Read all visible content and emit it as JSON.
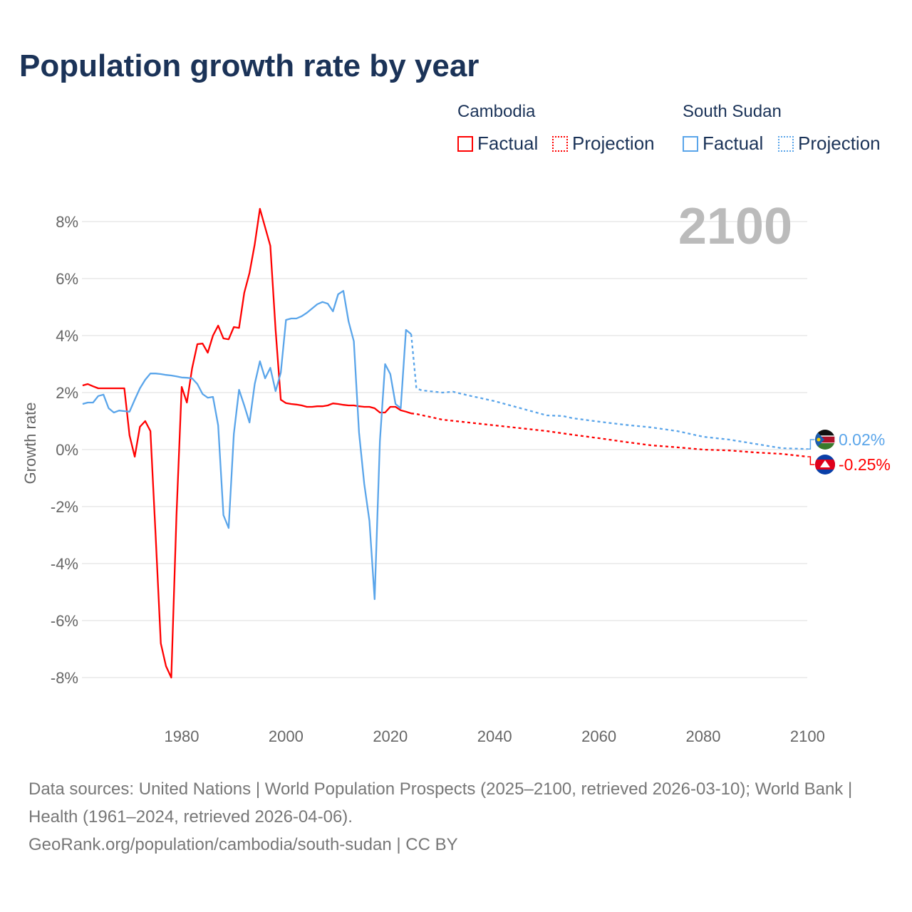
{
  "title": "Population growth rate by year",
  "legend": {
    "groups": [
      {
        "name": "Cambodia",
        "factual": "Factual",
        "projection": "Projection",
        "color": "#ff0000"
      },
      {
        "name": "South Sudan",
        "factual": "Factual",
        "projection": "Projection",
        "color": "#5aa5ea"
      }
    ]
  },
  "chart_data": {
    "type": "line",
    "title": "Population growth rate by year",
    "xlabel": "",
    "ylabel": "Growth rate",
    "xlim": [
      1961,
      2100
    ],
    "ylim": [
      -9.5,
      9
    ],
    "yticks": [
      8,
      6,
      4,
      2,
      0,
      -2,
      -4,
      -6,
      -8
    ],
    "ytick_labels": [
      "8%",
      "6%",
      "4%",
      "2%",
      "0%",
      "-2%",
      "-4%",
      "-6%",
      "-8%"
    ],
    "xticks": [
      1980,
      2000,
      2020,
      2040,
      2060,
      2080,
      2100
    ],
    "xtick_labels": [
      "1980",
      "2000",
      "2020",
      "2040",
      "2060",
      "2080",
      "2100"
    ],
    "grid": true,
    "year_label": "2100",
    "series": [
      {
        "name": "Cambodia Factual",
        "color": "#ff0000",
        "dashed": false,
        "x": [
          1961,
          1962,
          1963,
          1964,
          1965,
          1966,
          1967,
          1968,
          1969,
          1970,
          1971,
          1972,
          1973,
          1974,
          1975,
          1976,
          1977,
          1978,
          1979,
          1980,
          1981,
          1982,
          1983,
          1984,
          1985,
          1986,
          1987,
          1988,
          1989,
          1990,
          1991,
          1992,
          1993,
          1994,
          1995,
          1996,
          1997,
          1998,
          1999,
          2000,
          2001,
          2002,
          2003,
          2004,
          2005,
          2006,
          2007,
          2008,
          2009,
          2010,
          2011,
          2012,
          2013,
          2014,
          2015,
          2016,
          2017,
          2018,
          2019,
          2020,
          2021,
          2022,
          2023,
          2024
        ],
        "y": [
          2.25,
          2.3,
          2.22,
          2.15,
          2.15,
          2.15,
          2.15,
          2.15,
          2.15,
          0.5,
          -0.25,
          0.8,
          1.0,
          0.65,
          -3.0,
          -6.8,
          -7.6,
          -8.0,
          -2.3,
          2.2,
          1.65,
          2.85,
          3.7,
          3.72,
          3.4,
          4.0,
          4.35,
          3.9,
          3.87,
          4.3,
          4.27,
          5.5,
          6.2,
          7.2,
          8.45,
          7.8,
          7.15,
          4.2,
          1.75,
          1.63,
          1.6,
          1.58,
          1.55,
          1.5,
          1.5,
          1.52,
          1.52,
          1.55,
          1.62,
          1.6,
          1.57,
          1.55,
          1.55,
          1.52,
          1.5,
          1.5,
          1.45,
          1.3,
          1.3,
          1.5,
          1.5,
          1.38,
          1.33,
          1.27
        ]
      },
      {
        "name": "Cambodia Projection",
        "color": "#ff0000",
        "dashed": true,
        "x": [
          2024,
          2025,
          2030,
          2035,
          2040,
          2045,
          2050,
          2055,
          2060,
          2065,
          2070,
          2075,
          2080,
          2085,
          2090,
          2095,
          2100
        ],
        "y": [
          1.27,
          1.25,
          1.05,
          0.95,
          0.85,
          0.75,
          0.65,
          0.52,
          0.4,
          0.27,
          0.15,
          0.08,
          0.0,
          -0.03,
          -0.1,
          -0.15,
          -0.25
        ]
      },
      {
        "name": "South Sudan Factual",
        "color": "#5aa5ea",
        "dashed": false,
        "x": [
          1961,
          1962,
          1963,
          1964,
          1965,
          1966,
          1967,
          1968,
          1969,
          1970,
          1971,
          1972,
          1973,
          1974,
          1975,
          1976,
          1977,
          1978,
          1979,
          1980,
          1981,
          1982,
          1983,
          1984,
          1985,
          1986,
          1987,
          1988,
          1989,
          1990,
          1991,
          1992,
          1993,
          1994,
          1995,
          1996,
          1997,
          1998,
          1999,
          2000,
          2001,
          2002,
          2003,
          2004,
          2005,
          2006,
          2007,
          2008,
          2009,
          2010,
          2011,
          2012,
          2013,
          2014,
          2015,
          2016,
          2017,
          2018,
          2019,
          2020,
          2021,
          2022,
          2023,
          2024
        ],
        "y": [
          1.6,
          1.65,
          1.65,
          1.88,
          1.93,
          1.45,
          1.3,
          1.37,
          1.35,
          1.33,
          1.75,
          2.15,
          2.45,
          2.67,
          2.67,
          2.65,
          2.62,
          2.6,
          2.57,
          2.53,
          2.52,
          2.5,
          2.3,
          1.95,
          1.82,
          1.85,
          0.85,
          -2.3,
          -2.75,
          0.55,
          2.1,
          1.55,
          0.95,
          2.3,
          3.1,
          2.5,
          2.87,
          2.05,
          2.7,
          4.55,
          4.6,
          4.6,
          4.68,
          4.8,
          4.95,
          5.1,
          5.18,
          5.12,
          4.85,
          5.45,
          5.57,
          4.5,
          3.8,
          0.6,
          -1.2,
          -2.5,
          -5.25,
          0.3,
          3.0,
          2.65,
          1.6,
          1.45,
          4.2,
          4.05
        ]
      },
      {
        "name": "South Sudan Projection",
        "color": "#5aa5ea",
        "dashed": true,
        "x": [
          2024,
          2025,
          2026,
          2030,
          2032,
          2035,
          2040,
          2045,
          2050,
          2053,
          2055,
          2060,
          2065,
          2070,
          2075,
          2080,
          2085,
          2090,
          2095,
          2100
        ],
        "y": [
          4.05,
          2.15,
          2.08,
          2.0,
          2.03,
          1.9,
          1.7,
          1.45,
          1.2,
          1.18,
          1.1,
          0.98,
          0.87,
          0.78,
          0.65,
          0.45,
          0.35,
          0.2,
          0.05,
          0.02
        ]
      }
    ],
    "end_labels": [
      {
        "country": "South Sudan",
        "value": "0.02%",
        "color": "#5aa5ea"
      },
      {
        "country": "Cambodia",
        "value": "-0.25%",
        "color": "#ff0000"
      }
    ]
  },
  "footer": {
    "sources": "Data sources: United Nations | World Population Prospects (2025–2100, retrieved 2026-03-10); World Bank | Health (1961–2024, retrieved 2026-04-06).",
    "link": "GeoRank.org/population/cambodia/south-sudan | CC BY"
  }
}
